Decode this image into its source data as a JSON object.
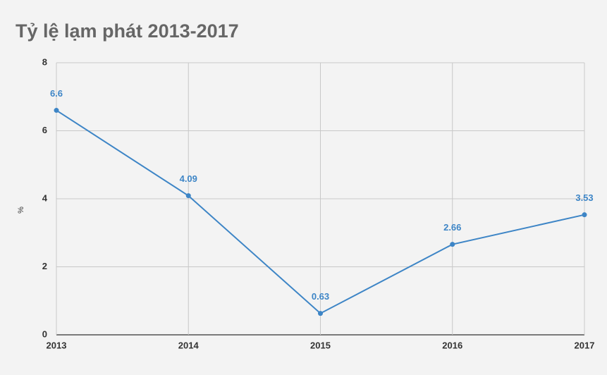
{
  "chart_data": {
    "type": "line",
    "title": "Tỷ lệ lạm phát 2013-2017",
    "y_label": "%",
    "x": [
      2013,
      2014,
      2015,
      2016,
      2017
    ],
    "xlim": [
      2013,
      2017
    ],
    "xticks": [
      2013,
      2014,
      2015,
      2016,
      2017
    ],
    "series": [
      {
        "color": "#3d85c6",
        "values": [
          6.6,
          4.09,
          0.63,
          2.66,
          3.53
        ]
      }
    ],
    "ylim": [
      0,
      8
    ],
    "yticks": [
      0,
      2,
      4,
      6,
      8
    ],
    "grid": true,
    "data_labels": true
  }
}
